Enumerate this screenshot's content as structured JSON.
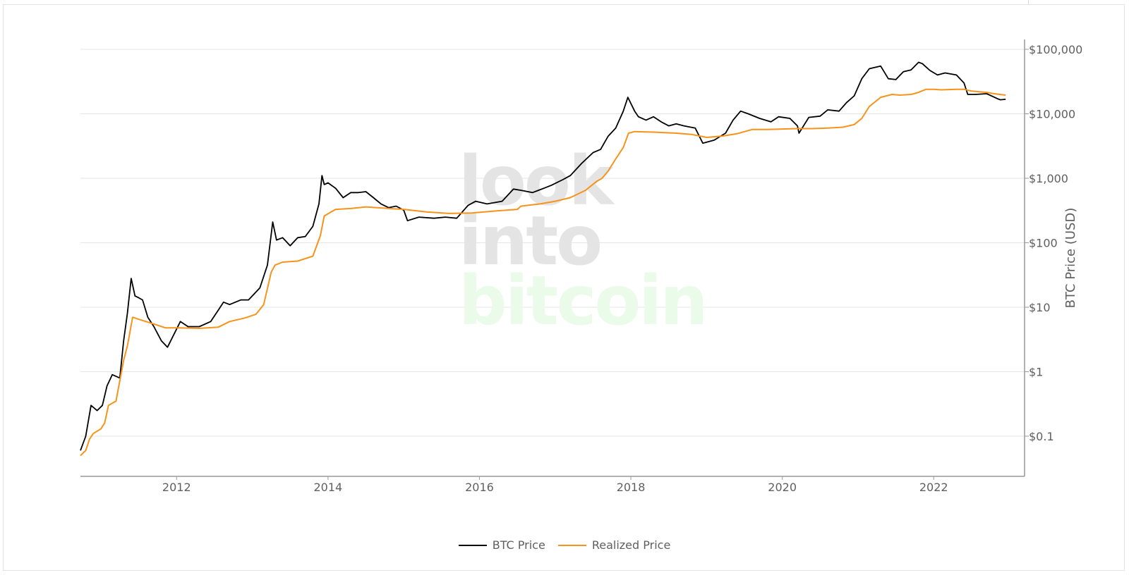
{
  "watermark": {
    "line1": "look",
    "line2": "into",
    "line3": "bitcoin",
    "color_gray": "#e4e4e4",
    "color_green": "#eafbea"
  },
  "legend": [
    {
      "label": "BTC Price",
      "color": "#000000"
    },
    {
      "label": "Realized Price",
      "color": "#f7931a"
    }
  ],
  "chart_data": {
    "type": "line",
    "title": "",
    "xlabel": "",
    "ylabel": "BTC Price (USD)",
    "yscale": "log",
    "y_ticks": [
      0.1,
      1,
      10,
      100,
      1000,
      10000,
      100000
    ],
    "y_tick_labels": [
      "$0.1",
      "$1",
      "$10",
      "$100",
      "$1,000",
      "$10,000",
      "$100,000"
    ],
    "x_ticks": [
      "2012",
      "2014",
      "2016",
      "2018",
      "2020",
      "2022"
    ],
    "xlim": [
      2010.73,
      2023.2
    ],
    "grid": "horizontal",
    "legend_position": "bottom-center",
    "series": [
      {
        "name": "BTC Price",
        "color": "#000000",
        "x": [
          2010.73,
          2010.8,
          2010.87,
          2010.95,
          2011.02,
          2011.08,
          2011.15,
          2011.25,
          2011.3,
          2011.35,
          2011.4,
          2011.45,
          2011.5,
          2011.55,
          2011.62,
          2011.7,
          2011.8,
          2011.88,
          2011.95,
          2012.05,
          2012.15,
          2012.3,
          2012.45,
          2012.55,
          2012.62,
          2012.7,
          2012.85,
          2012.95,
          2013.1,
          2013.2,
          2013.27,
          2013.32,
          2013.4,
          2013.5,
          2013.6,
          2013.7,
          2013.8,
          2013.88,
          2013.92,
          2013.95,
          2014.0,
          2014.1,
          2014.2,
          2014.3,
          2014.4,
          2014.5,
          2014.6,
          2014.7,
          2014.8,
          2014.9,
          2015.0,
          2015.05,
          2015.2,
          2015.4,
          2015.55,
          2015.7,
          2015.85,
          2015.95,
          2016.1,
          2016.3,
          2016.45,
          2016.55,
          2016.7,
          2016.85,
          2016.95,
          2017.1,
          2017.2,
          2017.35,
          2017.5,
          2017.6,
          2017.7,
          2017.8,
          2017.9,
          2017.96,
          2018.05,
          2018.1,
          2018.2,
          2018.3,
          2018.4,
          2018.5,
          2018.6,
          2018.7,
          2018.85,
          2018.95,
          2019.1,
          2019.25,
          2019.35,
          2019.45,
          2019.55,
          2019.7,
          2019.85,
          2019.95,
          2020.1,
          2020.2,
          2020.22,
          2020.35,
          2020.5,
          2020.6,
          2020.75,
          2020.85,
          2020.95,
          2021.05,
          2021.15,
          2021.3,
          2021.4,
          2021.5,
          2021.6,
          2021.7,
          2021.8,
          2021.85,
          2021.95,
          2022.05,
          2022.15,
          2022.3,
          2022.4,
          2022.45,
          2022.55,
          2022.7,
          2022.85,
          2022.88,
          2022.95
        ],
        "y": [
          0.06,
          0.1,
          0.3,
          0.25,
          0.3,
          0.6,
          0.9,
          0.8,
          3,
          8,
          28,
          15,
          14,
          13,
          7,
          5,
          3,
          2.4,
          3.5,
          6,
          5,
          5,
          6,
          9,
          12,
          11,
          13,
          13,
          20,
          45,
          210,
          110,
          120,
          90,
          120,
          125,
          180,
          400,
          1100,
          800,
          850,
          700,
          500,
          600,
          600,
          620,
          500,
          400,
          350,
          370,
          320,
          220,
          250,
          240,
          250,
          240,
          380,
          440,
          400,
          440,
          680,
          650,
          600,
          700,
          780,
          950,
          1100,
          1700,
          2500,
          2800,
          4500,
          6000,
          11000,
          18000,
          11000,
          9000,
          8000,
          9000,
          7500,
          6500,
          7000,
          6500,
          6000,
          3500,
          3900,
          5000,
          8000,
          11000,
          10000,
          8500,
          7500,
          9000,
          8500,
          6500,
          5000,
          8800,
          9200,
          11500,
          11000,
          15000,
          19000,
          35000,
          50000,
          55000,
          35000,
          34000,
          45000,
          48000,
          63000,
          60000,
          47000,
          40000,
          43000,
          40000,
          30000,
          20000,
          20000,
          20500,
          17000,
          16500,
          16800
        ]
      },
      {
        "name": "Realized Price",
        "color": "#f7931a",
        "x": [
          2010.73,
          2010.8,
          2010.85,
          2010.9,
          2011.0,
          2011.05,
          2011.1,
          2011.2,
          2011.3,
          2011.35,
          2011.42,
          2011.5,
          2011.7,
          2011.85,
          2012.0,
          2012.3,
          2012.55,
          2012.7,
          2012.9,
          2013.05,
          2013.15,
          2013.25,
          2013.3,
          2013.4,
          2013.6,
          2013.8,
          2013.9,
          2013.95,
          2014.1,
          2014.3,
          2014.5,
          2014.8,
          2015.0,
          2015.3,
          2015.6,
          2015.9,
          2016.2,
          2016.5,
          2016.55,
          2016.8,
          2017.0,
          2017.2,
          2017.4,
          2017.55,
          2017.62,
          2017.7,
          2017.8,
          2017.9,
          2017.97,
          2018.05,
          2018.3,
          2018.6,
          2018.8,
          2019.0,
          2019.2,
          2019.4,
          2019.6,
          2019.8,
          2020.0,
          2020.2,
          2020.4,
          2020.6,
          2020.8,
          2020.95,
          2021.05,
          2021.15,
          2021.3,
          2021.45,
          2021.55,
          2021.7,
          2021.8,
          2021.9,
          2022.0,
          2022.1,
          2022.3,
          2022.4,
          2022.5,
          2022.7,
          2022.8,
          2022.95
        ],
        "y": [
          0.05,
          0.06,
          0.09,
          0.11,
          0.13,
          0.16,
          0.3,
          0.35,
          1.5,
          2.5,
          7,
          6.5,
          5.5,
          4.8,
          4.8,
          4.7,
          4.9,
          6,
          6.8,
          7.8,
          11,
          35,
          45,
          50,
          52,
          62,
          130,
          260,
          330,
          340,
          360,
          340,
          330,
          300,
          285,
          290,
          310,
          330,
          370,
          400,
          440,
          500,
          650,
          900,
          1000,
          1300,
          2000,
          3000,
          5000,
          5300,
          5200,
          5000,
          4800,
          4300,
          4500,
          4900,
          5700,
          5700,
          5800,
          5900,
          5900,
          6000,
          6200,
          6800,
          8500,
          13000,
          18000,
          20000,
          19500,
          20000,
          21500,
          24000,
          24000,
          23500,
          24000,
          24000,
          22500,
          21500,
          20500,
          19500
        ]
      }
    ]
  }
}
